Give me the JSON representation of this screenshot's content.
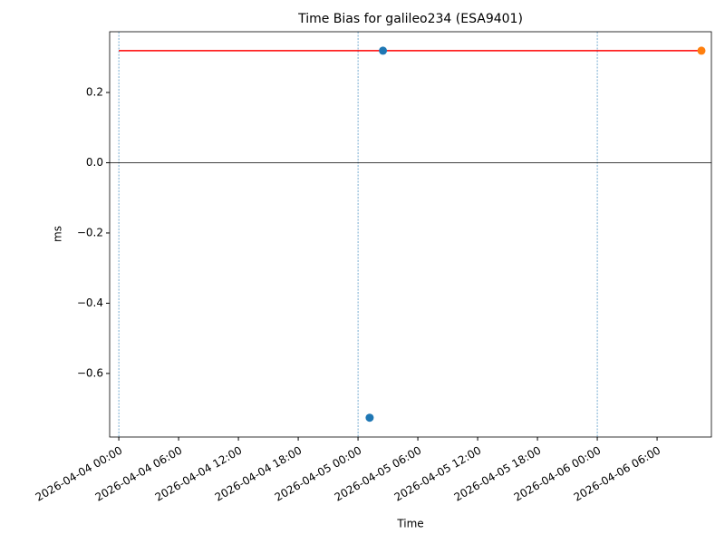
{
  "chart_data": {
    "type": "scatter",
    "title": "Time Bias for galileo234 (ESA9401)",
    "xlabel": "Time",
    "ylabel": "ms",
    "xlim": [
      "2026-04-03 23:05",
      "2026-04-06 11:27"
    ],
    "ylim": [
      -0.781,
      0.373
    ],
    "xticks": [
      "2026-04-04 00:00",
      "2026-04-04 06:00",
      "2026-04-04 12:00",
      "2026-04-04 18:00",
      "2026-04-05 00:00",
      "2026-04-05 06:00",
      "2026-04-05 12:00",
      "2026-04-05 18:00",
      "2026-04-06 00:00",
      "2026-04-06 06:00"
    ],
    "yticks": [
      {
        "value": -0.6,
        "label": "−0.6"
      },
      {
        "value": -0.4,
        "label": "−0.4"
      },
      {
        "value": -0.2,
        "label": "−0.2"
      },
      {
        "value": 0,
        "label": "0.0"
      },
      0.2
    ],
    "hline": 0,
    "vlines": [
      "2026-04-04 00:00",
      "2026-04-05 00:00",
      "2026-04-06 00:00"
    ],
    "series": [
      {
        "color": "#1f77b4",
        "style": "points",
        "x": [
          "2026-04-05 01:10",
          "2026-04-05 02:30"
        ],
        "values": [
          -0.726,
          0.319
        ]
      },
      {
        "color": "#ff7f0e",
        "style": "points",
        "x": [
          "2026-04-06 10:27"
        ],
        "values": [
          0.319
        ]
      },
      {
        "color": "#ff0000",
        "style": "line",
        "x": [
          "2026-04-04 00:00",
          "2026-04-06 10:27"
        ],
        "values": [
          0.319,
          0.319
        ]
      }
    ]
  }
}
